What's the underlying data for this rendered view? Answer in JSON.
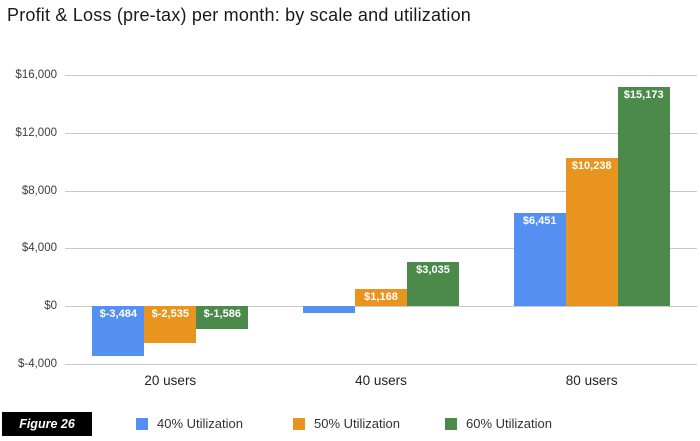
{
  "figure_label": "Figure 26",
  "colors": {
    "series_blue": "#548FF2",
    "series_orange": "#E8941F",
    "series_green": "#4C8A4C",
    "gridline": "#C9C9C9",
    "bar_label_text": "#FFFFFF",
    "badge_background": "#000000"
  },
  "chart_data": {
    "type": "bar",
    "title": "Profit & Loss (pre-tax) per month: by scale and utilization",
    "categories": [
      "20 users",
      "40 users",
      "80 users"
    ],
    "series": [
      {
        "name": "40% Utilization",
        "color": "#548FF2",
        "values": [
          -3484,
          -480,
          6451
        ],
        "bar_labels": [
          "$-3,484",
          "",
          "$6,451"
        ]
      },
      {
        "name": "50% Utilization",
        "color": "#E8941F",
        "values": [
          -2535,
          1168,
          10238
        ],
        "bar_labels": [
          "$-2,535",
          "$1,168",
          "$10,238"
        ]
      },
      {
        "name": "60% Utilization",
        "color": "#4C8A4C",
        "values": [
          -1586,
          3035,
          15173
        ],
        "bar_labels": [
          "$-1,586",
          "$3,035",
          "$15,173"
        ]
      }
    ],
    "y_axis": {
      "tick_labels": [
        "$16,000",
        "$12,000",
        "$8,000",
        "$4,000",
        "$0",
        "$-4,000"
      ],
      "tick_values": [
        16000,
        12000,
        8000,
        4000,
        0,
        -4000
      ],
      "ylim": [
        -4000,
        16000
      ]
    },
    "grid": true,
    "legend_position": "bottom",
    "legend": [
      "40% Utilization",
      "50% Utilization",
      "60% Utilization"
    ]
  }
}
